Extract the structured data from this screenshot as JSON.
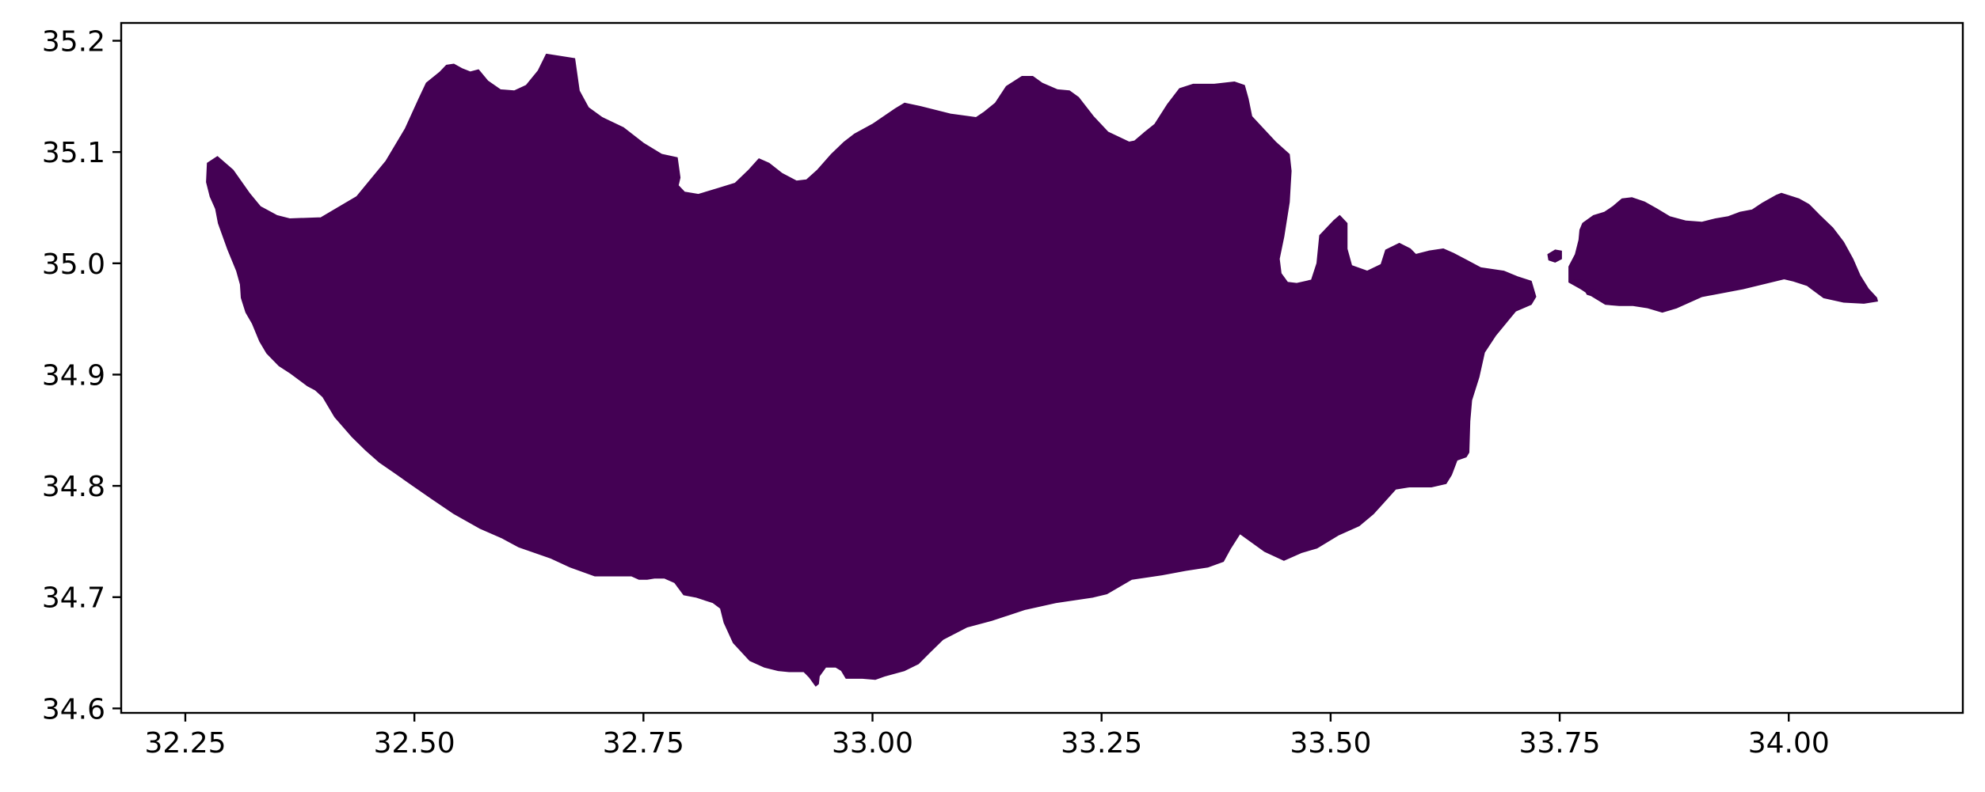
{
  "chart_data": {
    "type": "map",
    "xlim": [
      32.18,
      34.19
    ],
    "ylim": [
      34.596,
      35.216
    ],
    "x_ticks": [
      {
        "value": 32.25,
        "label": "32.25"
      },
      {
        "value": 32.5,
        "label": "32.50"
      },
      {
        "value": 32.75,
        "label": "32.75"
      },
      {
        "value": 33.0,
        "label": "33.00"
      },
      {
        "value": 33.25,
        "label": "33.25"
      },
      {
        "value": 33.5,
        "label": "33.50"
      },
      {
        "value": 33.75,
        "label": "33.75"
      },
      {
        "value": 34.0,
        "label": "34.00"
      }
    ],
    "y_ticks": [
      {
        "value": 34.6,
        "label": "34.6"
      },
      {
        "value": 34.7,
        "label": "34.7"
      },
      {
        "value": 34.8,
        "label": "34.8"
      },
      {
        "value": 34.9,
        "label": "34.9"
      },
      {
        "value": 35.0,
        "label": "35.0"
      },
      {
        "value": 35.1,
        "label": "35.1"
      },
      {
        "value": 35.2,
        "label": "35.2"
      }
    ],
    "grid": false,
    "fill_color": "#440154",
    "shapes": [
      {
        "part": "main",
        "lonlat": [
          [
            32.274,
            35.09
          ],
          [
            32.285,
            35.096
          ],
          [
            32.302,
            35.084
          ],
          [
            32.32,
            35.063
          ],
          [
            32.332,
            35.051
          ],
          [
            32.35,
            35.043
          ],
          [
            32.364,
            35.04
          ],
          [
            32.398,
            35.041
          ],
          [
            32.437,
            35.06
          ],
          [
            32.469,
            35.092
          ],
          [
            32.49,
            35.121
          ],
          [
            32.505,
            35.148
          ],
          [
            32.513,
            35.162
          ],
          [
            32.528,
            35.172
          ],
          [
            32.535,
            35.178
          ],
          [
            32.543,
            35.179
          ],
          [
            32.552,
            35.175
          ],
          [
            32.561,
            35.172
          ],
          [
            32.57,
            35.174
          ],
          [
            32.58,
            35.164
          ],
          [
            32.594,
            35.156
          ],
          [
            32.609,
            35.155
          ],
          [
            32.622,
            35.16
          ],
          [
            32.635,
            35.173
          ],
          [
            32.644,
            35.188
          ],
          [
            32.675,
            35.184
          ],
          [
            32.68,
            35.155
          ],
          [
            32.69,
            35.14
          ],
          [
            32.705,
            35.131
          ],
          [
            32.728,
            35.122
          ],
          [
            32.75,
            35.108
          ],
          [
            32.77,
            35.098
          ],
          [
            32.787,
            35.095
          ],
          [
            32.79,
            35.077
          ],
          [
            32.788,
            35.07
          ],
          [
            32.795,
            35.064
          ],
          [
            32.81,
            35.062
          ],
          [
            32.83,
            35.067
          ],
          [
            32.85,
            35.072
          ],
          [
            32.865,
            35.084
          ],
          [
            32.876,
            35.094
          ],
          [
            32.887,
            35.09
          ],
          [
            32.901,
            35.081
          ],
          [
            32.917,
            35.074
          ],
          [
            32.928,
            35.075
          ],
          [
            32.94,
            35.084
          ],
          [
            32.955,
            35.098
          ],
          [
            32.969,
            35.109
          ],
          [
            32.98,
            35.116
          ],
          [
            33.0,
            35.125
          ],
          [
            33.025,
            35.139
          ],
          [
            33.035,
            35.144
          ],
          [
            33.052,
            35.141
          ],
          [
            33.086,
            35.134
          ],
          [
            33.113,
            35.131
          ],
          [
            33.122,
            35.136
          ],
          [
            33.134,
            35.144
          ],
          [
            33.146,
            35.159
          ],
          [
            33.163,
            35.168
          ],
          [
            33.175,
            35.168
          ],
          [
            33.185,
            35.162
          ],
          [
            33.202,
            35.156
          ],
          [
            33.215,
            35.155
          ],
          [
            33.225,
            35.149
          ],
          [
            33.241,
            35.132
          ],
          [
            33.257,
            35.118
          ],
          [
            33.28,
            35.109
          ],
          [
            33.286,
            35.11
          ],
          [
            33.296,
            35.117
          ],
          [
            33.308,
            35.125
          ],
          [
            33.322,
            35.143
          ],
          [
            33.335,
            35.157
          ],
          [
            33.35,
            35.161
          ],
          [
            33.373,
            35.161
          ],
          [
            33.395,
            35.163
          ],
          [
            33.406,
            35.16
          ],
          [
            33.41,
            35.148
          ],
          [
            33.414,
            35.132
          ],
          [
            33.423,
            35.124
          ],
          [
            33.44,
            35.109
          ],
          [
            33.455,
            35.098
          ],
          [
            33.457,
            35.083
          ],
          [
            33.456,
            35.07
          ],
          [
            33.455,
            35.055
          ],
          [
            33.449,
            35.024
          ],
          [
            33.444,
            35.004
          ],
          [
            33.446,
            34.991
          ],
          [
            33.453,
            34.983
          ],
          [
            33.463,
            34.982
          ],
          [
            33.479,
            34.985
          ],
          [
            33.485,
            35.0
          ],
          [
            33.488,
            35.025
          ],
          [
            33.503,
            35.038
          ],
          [
            33.51,
            35.043
          ],
          [
            33.518,
            35.036
          ],
          [
            33.518,
            35.013
          ],
          [
            33.523,
            34.998
          ],
          [
            33.54,
            34.993
          ],
          [
            33.555,
            34.999
          ],
          [
            33.56,
            35.012
          ],
          [
            33.575,
            35.018
          ],
          [
            33.587,
            35.013
          ],
          [
            33.593,
            35.008
          ],
          [
            33.607,
            35.011
          ],
          [
            33.623,
            35.013
          ],
          [
            33.634,
            35.009
          ],
          [
            33.648,
            35.003
          ],
          [
            33.664,
            34.996
          ],
          [
            33.689,
            34.993
          ],
          [
            33.704,
            34.988
          ],
          [
            33.719,
            34.984
          ],
          [
            33.724,
            34.97
          ],
          [
            33.719,
            34.963
          ],
          [
            33.702,
            34.957
          ],
          [
            33.693,
            34.948
          ],
          [
            33.68,
            34.935
          ],
          [
            33.668,
            34.92
          ],
          [
            33.662,
            34.898
          ],
          [
            33.654,
            34.877
          ],
          [
            33.652,
            34.858
          ],
          [
            33.651,
            34.83
          ],
          [
            33.648,
            34.826
          ],
          [
            33.638,
            34.823
          ],
          [
            33.632,
            34.81
          ],
          [
            33.626,
            34.802
          ],
          [
            33.61,
            34.799
          ],
          [
            33.586,
            34.799
          ],
          [
            33.571,
            34.797
          ],
          [
            33.559,
            34.786
          ],
          [
            33.547,
            34.775
          ],
          [
            33.531,
            34.764
          ],
          [
            33.509,
            34.756
          ],
          [
            33.485,
            34.744
          ],
          [
            33.468,
            34.74
          ],
          [
            33.449,
            34.733
          ],
          [
            33.428,
            34.741
          ],
          [
            33.401,
            34.757
          ],
          [
            33.391,
            34.744
          ],
          [
            33.383,
            34.732
          ],
          [
            33.366,
            34.727
          ],
          [
            33.342,
            34.724
          ],
          [
            33.316,
            34.72
          ],
          [
            33.283,
            34.716
          ],
          [
            33.256,
            34.703
          ],
          [
            33.241,
            34.7
          ],
          [
            33.2,
            34.695
          ],
          [
            33.167,
            34.689
          ],
          [
            33.13,
            34.679
          ],
          [
            33.103,
            34.673
          ],
          [
            33.077,
            34.662
          ],
          [
            33.062,
            34.65
          ],
          [
            33.05,
            34.64
          ],
          [
            33.035,
            34.634
          ],
          [
            33.013,
            34.629
          ],
          [
            33.003,
            34.626
          ],
          [
            32.989,
            34.627
          ],
          [
            32.971,
            34.627
          ],
          [
            32.966,
            34.634
          ],
          [
            32.96,
            34.637
          ],
          [
            32.949,
            34.637
          ],
          [
            32.942,
            34.629
          ],
          [
            32.941,
            34.622
          ],
          [
            32.938,
            34.62
          ],
          [
            32.931,
            34.628
          ],
          [
            32.925,
            34.633
          ],
          [
            32.909,
            34.633
          ],
          [
            32.897,
            34.634
          ],
          [
            32.882,
            34.637
          ],
          [
            32.866,
            34.643
          ],
          [
            32.848,
            34.659
          ],
          [
            32.838,
            34.677
          ],
          [
            32.834,
            34.69
          ],
          [
            32.826,
            34.695
          ],
          [
            32.807,
            34.7
          ],
          [
            32.794,
            34.702
          ],
          [
            32.784,
            34.713
          ],
          [
            32.773,
            34.717
          ],
          [
            32.762,
            34.717
          ],
          [
            32.754,
            34.716
          ],
          [
            32.745,
            34.716
          ],
          [
            32.737,
            34.719
          ],
          [
            32.722,
            34.719
          ],
          [
            32.697,
            34.719
          ],
          [
            32.67,
            34.727
          ],
          [
            32.649,
            34.735
          ],
          [
            32.614,
            34.745
          ],
          [
            32.596,
            34.753
          ],
          [
            32.571,
            34.762
          ],
          [
            32.543,
            34.775
          ],
          [
            32.518,
            34.789
          ],
          [
            32.497,
            34.801
          ],
          [
            32.478,
            34.812
          ],
          [
            32.462,
            34.821
          ],
          [
            32.447,
            34.832
          ],
          [
            32.432,
            34.844
          ],
          [
            32.413,
            34.862
          ],
          [
            32.4,
            34.88
          ],
          [
            32.392,
            34.886
          ],
          [
            32.383,
            34.89
          ],
          [
            32.365,
            34.901
          ],
          [
            32.352,
            34.908
          ],
          [
            32.339,
            34.919
          ],
          [
            32.331,
            34.93
          ],
          [
            32.323,
            34.946
          ],
          [
            32.316,
            34.956
          ],
          [
            32.311,
            34.969
          ],
          [
            32.31,
            34.981
          ],
          [
            32.306,
            34.993
          ],
          [
            32.296,
            35.013
          ],
          [
            32.286,
            35.036
          ],
          [
            32.283,
            35.049
          ],
          [
            32.277,
            35.06
          ],
          [
            32.273,
            35.073
          ]
        ]
      },
      {
        "part": "east",
        "lonlat": [
          [
            33.775,
            35.036
          ],
          [
            33.787,
            35.043
          ],
          [
            33.799,
            35.046
          ],
          [
            33.808,
            35.051
          ],
          [
            33.818,
            35.058
          ],
          [
            33.829,
            35.059
          ],
          [
            33.843,
            35.055
          ],
          [
            33.856,
            35.049
          ],
          [
            33.87,
            35.042
          ],
          [
            33.888,
            35.038
          ],
          [
            33.905,
            35.037
          ],
          [
            33.92,
            35.04
          ],
          [
            33.934,
            35.042
          ],
          [
            33.947,
            35.046
          ],
          [
            33.96,
            35.048
          ],
          [
            33.971,
            35.054
          ],
          [
            33.986,
            35.061
          ],
          [
            33.992,
            35.063
          ],
          [
            34.011,
            35.058
          ],
          [
            34.022,
            35.053
          ],
          [
            34.034,
            35.043
          ],
          [
            34.048,
            35.032
          ],
          [
            34.06,
            35.019
          ],
          [
            34.07,
            35.004
          ],
          [
            34.078,
            34.989
          ],
          [
            34.087,
            34.977
          ],
          [
            34.096,
            34.969
          ],
          [
            34.097,
            34.966
          ],
          [
            34.082,
            34.964
          ],
          [
            34.06,
            34.965
          ],
          [
            34.038,
            34.969
          ],
          [
            34.02,
            34.98
          ],
          [
            34.005,
            34.984
          ],
          [
            33.995,
            34.986
          ],
          [
            33.95,
            34.977
          ],
          [
            33.905,
            34.97
          ],
          [
            33.878,
            34.96
          ],
          [
            33.862,
            34.956
          ],
          [
            33.846,
            34.96
          ],
          [
            33.83,
            34.962
          ],
          [
            33.815,
            34.962
          ],
          [
            33.8,
            34.963
          ],
          [
            33.786,
            34.97
          ],
          [
            33.773,
            34.977
          ],
          [
            33.76,
            34.983
          ],
          [
            33.76,
            34.997
          ],
          [
            33.767,
            35.008
          ],
          [
            33.771,
            35.021
          ],
          [
            33.772,
            35.03
          ]
        ]
      },
      {
        "part": "islet-1",
        "lonlat": [
          [
            33.737,
            35.008
          ],
          [
            33.745,
            35.012
          ],
          [
            33.752,
            35.011
          ],
          [
            33.752,
            35.004
          ],
          [
            33.745,
            35.001
          ],
          [
            33.738,
            35.003
          ]
        ]
      },
      {
        "part": "islet-2",
        "lonlat": [
          [
            33.762,
            34.984
          ],
          [
            33.77,
            34.986
          ],
          [
            33.778,
            34.984
          ],
          [
            33.782,
            34.979
          ],
          [
            33.774,
            34.978
          ],
          [
            33.766,
            34.981
          ]
        ]
      },
      {
        "part": "islet-3",
        "lonlat": [
          [
            33.778,
            34.975
          ],
          [
            33.786,
            34.977
          ],
          [
            33.793,
            34.975
          ],
          [
            33.796,
            34.972
          ],
          [
            33.788,
            34.97
          ],
          [
            33.78,
            34.972
          ]
        ]
      }
    ]
  }
}
